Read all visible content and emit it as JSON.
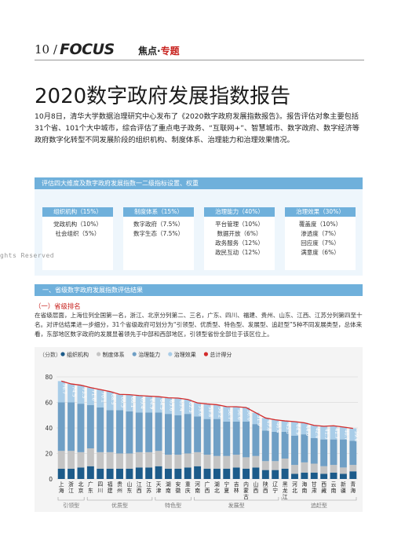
{
  "header": {
    "page_num": "10",
    "slash": "/",
    "focus": "FOCUS",
    "section_a": "焦点",
    "dot": "·",
    "section_b": "专题"
  },
  "title": "2020数字政府发展指数报告",
  "lead": "10月8日，清华大学数据治理研究中心发布了《2020数字政府发展指数报告》。报告评估对象主要包括31个省、101个大中城市，综合评估了重点电子政务、“互联网+”、智慧城市、数字政府、数字经济等政府数字化转型不同发展阶段的组织机构、制度体系、治理能力和治理效果情况。",
  "framework": {
    "heading": "评估四大维度及数字政府发展指数一二级指标设置、权重",
    "cards": [
      {
        "head": "组织机构（15%）",
        "items": [
          "党政机构（10%）",
          "社会组织（5%）"
        ]
      },
      {
        "head": "制度体系（15%）",
        "items": [
          "数字政府（7.5%）",
          "数字生态（7.5%）"
        ]
      },
      {
        "head": "治理能力（40%）",
        "items": [
          "平台管理（10%）",
          "数据开放（6%）",
          "政务服务（12%）",
          "政民互动（12%）"
        ]
      },
      {
        "head": "治理效果（30%）",
        "items": [
          "覆盖度（10%）",
          "渗透度（7%）",
          "回应度（7%）",
          "满意度（6%）"
        ]
      }
    ]
  },
  "watermark": "ghts Reserved",
  "section1": "一、省级数字政府发展指数评估结果",
  "subsection": "（一）省级排名",
  "para": "在省级层面，上海位列全国第一名，浙江、北京分列第二、三名，广东、四川、福建、贵州、山东、江西、江苏分列第四至十名。对评估结果进一步细分，31个省级政府可划分为“引领型、优质型、特色型、发展型、追赶型”5种不同发展类型，总体来看，东部地区数字政府的发展显著领先于中部和西部地区，引领型省份全部位于该区位上。",
  "chart_data": {
    "type": "bar",
    "unit_label": "（分数）",
    "legend": [
      "组织机构",
      "制度体系",
      "治理能力",
      "治理效果",
      "总计得分"
    ],
    "colors": {
      "org": "#1c5b8a",
      "sys": "#c4c4c4",
      "cap": "#6f9fc5",
      "eff": "#a9cde8",
      "total": "#d32b2b"
    },
    "ylim": [
      0,
      80
    ],
    "yticks": [
      0,
      20,
      40,
      60,
      80
    ],
    "categories": [
      "上海",
      "浙江",
      "北京",
      "广东",
      "四川",
      "福建",
      "贵州",
      "山东",
      "江西",
      "江苏",
      "天津",
      "湖南",
      "安徽",
      "重庆",
      "河南",
      "广西",
      "湖北",
      "宁夏",
      "吉林",
      "内蒙古",
      "山西",
      "陕西",
      "辽宁",
      "黑龙江",
      "河北",
      "海南",
      "甘肃",
      "西藏",
      "云南",
      "新疆",
      "青海"
    ],
    "totals": [
      76.7,
      74.5,
      73.5,
      71.6,
      70.1,
      68.5,
      66.3,
      66.1,
      65.4,
      64.9,
      64.5,
      63.6,
      63.4,
      62.3,
      59.6,
      58.8,
      58.2,
      56.7,
      56.6,
      56.0,
      51.9,
      47.8,
      46.4,
      45.5,
      44.9,
      44.0,
      42.0,
      41.3,
      41.7,
      40.7,
      39.6
    ],
    "labels": [
      "76.7",
      "74.5",
      "73.5",
      "71.6",
      "70.1",
      "68.5",
      "66.3",
      "66.1",
      "65.4",
      "64.9",
      "64.5",
      "63.6",
      "63.4",
      "62.3",
      "59.6",
      "58.8",
      "58.2",
      "56.7",
      "56.6",
      "56.0",
      "51.9",
      "47.8",
      "46.4",
      "45.5",
      "44.9",
      "44.0",
      "42.0",
      "41.3",
      "41.7",
      "40.7",
      "39.6"
    ],
    "org": [
      8,
      8,
      9,
      10,
      8,
      8,
      8,
      8,
      9,
      9,
      10,
      8,
      8,
      9,
      10,
      8,
      8,
      8,
      9,
      8,
      9,
      7,
      7,
      8,
      4,
      5,
      5,
      4,
      5,
      4,
      6
    ],
    "sys": [
      14,
      14,
      12,
      14,
      13,
      13,
      12,
      12,
      12,
      12,
      12,
      11,
      11,
      11,
      11,
      11,
      10,
      10,
      10,
      9,
      9,
      7,
      7,
      8,
      7,
      8,
      7,
      6,
      6,
      5,
      5
    ],
    "cap": [
      38,
      38,
      38,
      34,
      35,
      33,
      34,
      33,
      31,
      31,
      30,
      32,
      31,
      31,
      28,
      28,
      29,
      27,
      26,
      28,
      25,
      24,
      23,
      21,
      23,
      22,
      20,
      21,
      20,
      22,
      19
    ],
    "groups": [
      "引领型",
      "优质型",
      "特色型",
      "发展型",
      "追赶型"
    ]
  }
}
